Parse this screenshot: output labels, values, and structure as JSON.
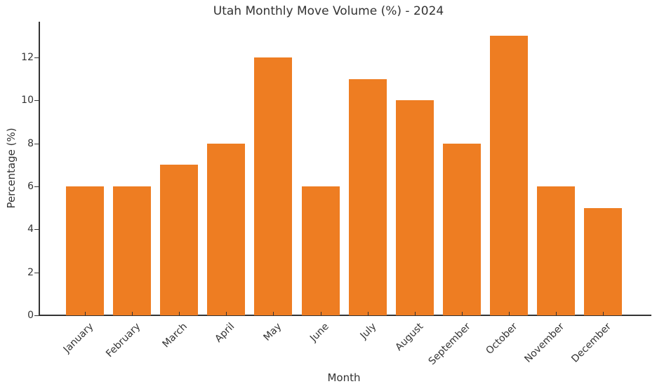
{
  "chart_data": {
    "type": "bar",
    "title": "Utah Monthly Move Volume (%) - 2024",
    "xlabel": "Month",
    "ylabel": "Percentage (%)",
    "categories": [
      "January",
      "February",
      "March",
      "April",
      "May",
      "June",
      "July",
      "August",
      "September",
      "October",
      "November",
      "December"
    ],
    "values": [
      6,
      6,
      7,
      8,
      12,
      6,
      11,
      10,
      8,
      13,
      6,
      5
    ],
    "ylim": [
      0,
      13.65
    ],
    "yticks": [
      0,
      2,
      4,
      6,
      8,
      10,
      12
    ],
    "grid": false,
    "legend": null,
    "bar_color": "#ee7d22",
    "xtick_rotation": 45
  }
}
